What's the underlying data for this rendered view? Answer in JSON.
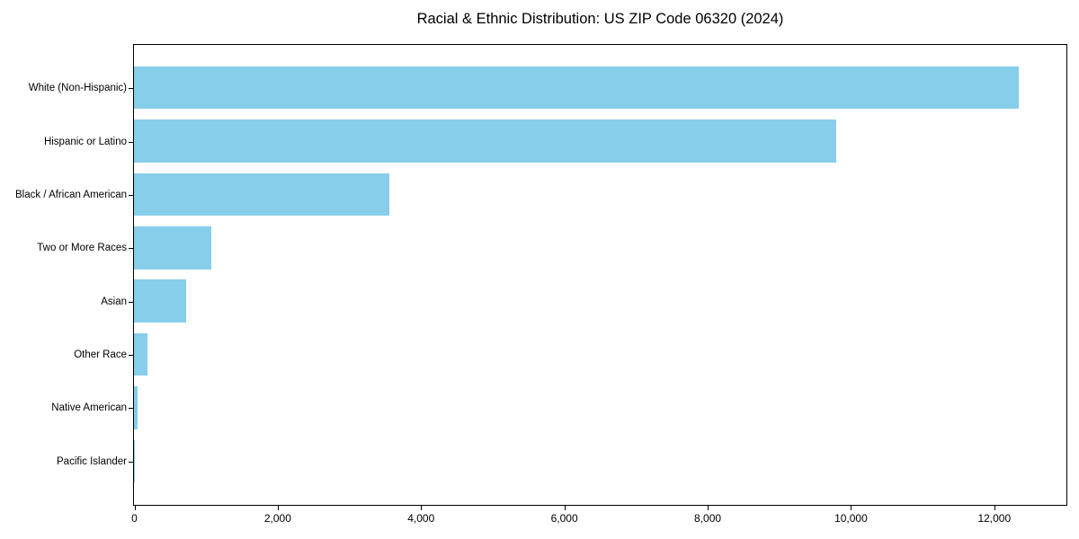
{
  "chart_data": {
    "type": "bar",
    "orientation": "horizontal",
    "title": "Racial & Ethnic Distribution: US ZIP Code 06320 (2024)",
    "categories": [
      "White (Non-Hispanic)",
      "Hispanic or Latino",
      "Black / African American",
      "Two or More Races",
      "Asian",
      "Other Race",
      "Native American",
      "Pacific Islander"
    ],
    "values": [
      12350,
      9800,
      3560,
      1075,
      730,
      190,
      55,
      10
    ],
    "xlabel": "",
    "ylabel": "",
    "xlim": [
      0,
      13000
    ],
    "xticks": [
      0,
      2000,
      4000,
      6000,
      8000,
      10000,
      12000
    ],
    "xtick_labels": [
      "0",
      "2,000",
      "4,000",
      "6,000",
      "8,000",
      "10,000",
      "12,000"
    ],
    "bar_color": "#87CEEB",
    "axis_color": "#000000",
    "background_color": "#FFFFFF",
    "grid": false,
    "legend": "none"
  }
}
